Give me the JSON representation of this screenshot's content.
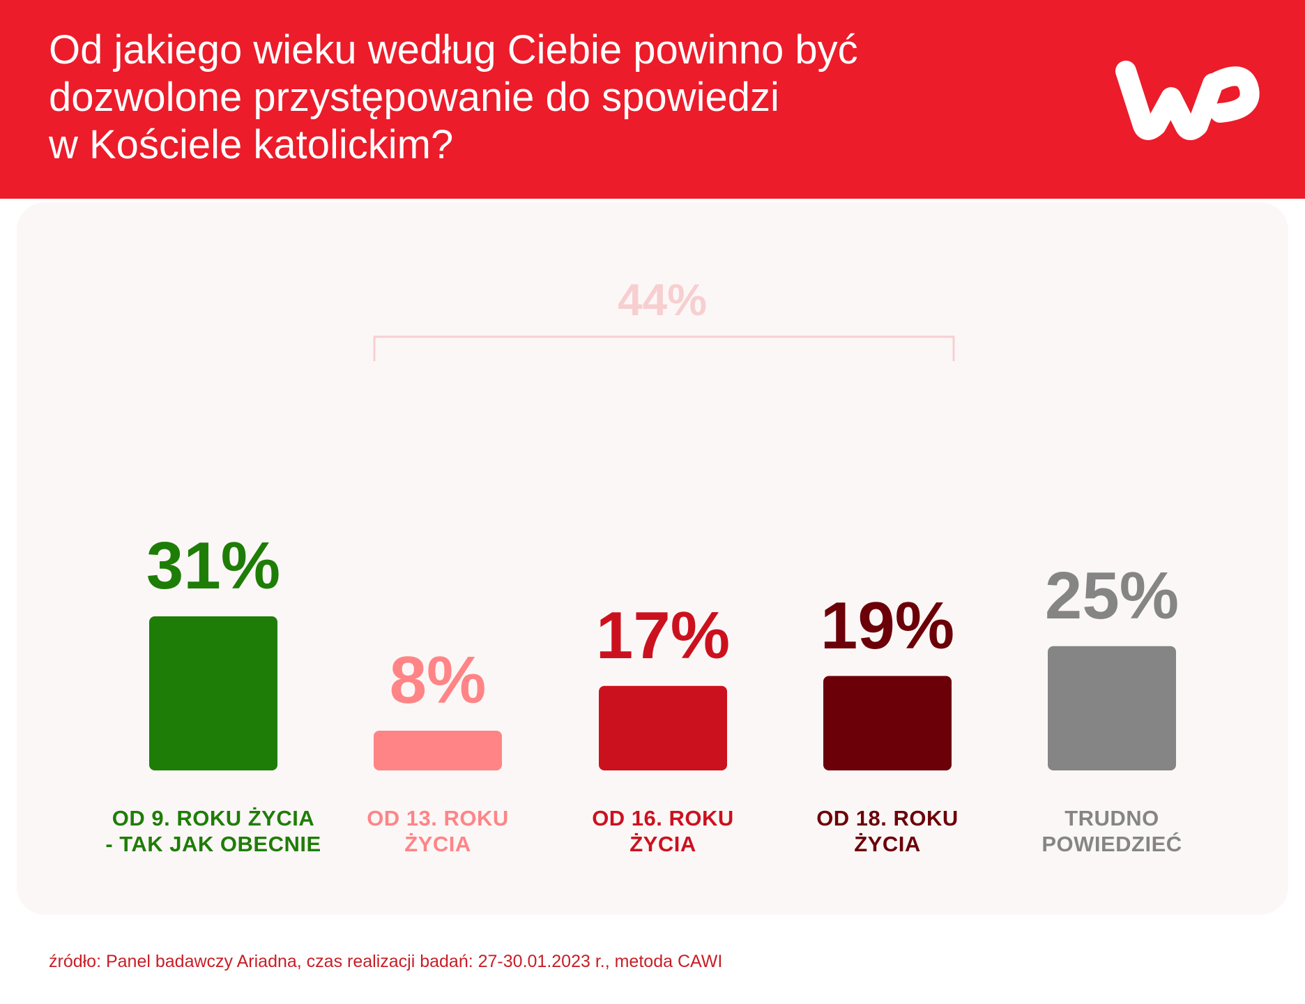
{
  "header": {
    "title_lines": [
      "Od jakiego wieku według Ciebie powinno być",
      "dozwolone przystępowanie do spowiedzi",
      "w Kościele katolickim?"
    ],
    "logo": "wp-logo",
    "background_color": "#ec1c2a"
  },
  "chart_data": {
    "type": "bar",
    "title": "Od jakiego wieku według Ciebie powinno być dozwolone przystępowanie do spowiedzi w Kościele katolickim?",
    "categories": [
      "OD 9. ROKU ŻYCIA - TAK JAK OBECNIE",
      "OD 13. ROKU ŻYCIA",
      "OD 16. ROKU ŻYCIA",
      "OD 18. ROKU ŻYCIA",
      "TRUDNO POWIEDZIEĆ"
    ],
    "values": [
      31,
      8,
      17,
      19,
      25
    ],
    "value_labels": [
      "31%",
      "8%",
      "17%",
      "19%",
      "25%"
    ],
    "label_lines": [
      [
        "OD 9. ROKU ŻYCIA",
        "- TAK JAK OBECNIE"
      ],
      [
        "OD 13. ROKU",
        "ŻYCIA"
      ],
      [
        "OD 16. ROKU",
        "ŻYCIA"
      ],
      [
        "OD 18. ROKU",
        "ŻYCIA"
      ],
      [
        "TRUDNO",
        "POWIEDZIEĆ"
      ]
    ],
    "colors": [
      "#1e7d06",
      "#ff8486",
      "#cc111e",
      "#6b0008",
      "#858585"
    ],
    "bracket": {
      "label": "44%",
      "spans_categories": [
        1,
        3
      ],
      "color": "#f7cfd0"
    },
    "ylim": [
      0,
      40
    ],
    "xlabel": "",
    "ylabel": ""
  },
  "source": "źródło: Panel badawczy Ariadna, czas realizacji badań: 27-30.01.2023 r., metoda CAWI"
}
